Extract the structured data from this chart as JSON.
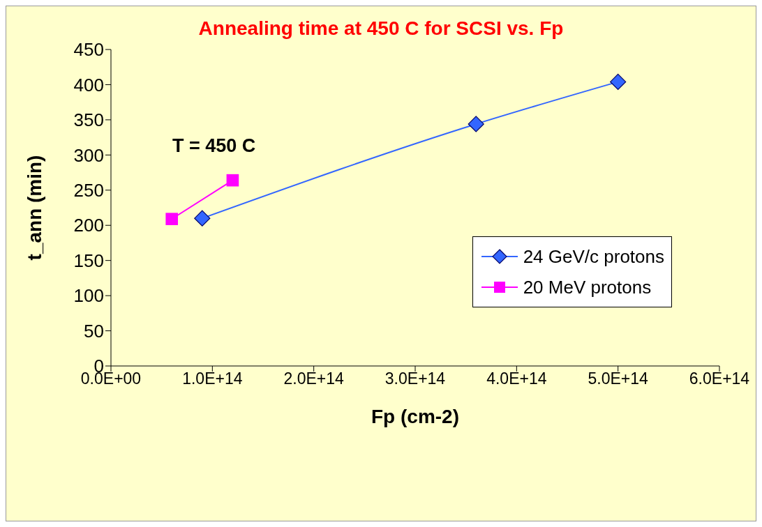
{
  "chart_data": {
    "type": "line",
    "title": "Annealing time at 450 C for SCSI vs. Fp",
    "xlabel": "Fp (cm-2)",
    "ylabel": "t_ann (min)",
    "annotations": [
      "T = 450 C"
    ],
    "xlim": [
      0,
      600000000000000
    ],
    "xticks": [
      {
        "value": 0,
        "label": "0.0E+00"
      },
      {
        "value": 100000000000000,
        "label": "1.0E+14"
      },
      {
        "value": 200000000000000,
        "label": "2.0E+14"
      },
      {
        "value": 300000000000000,
        "label": "3.0E+14"
      },
      {
        "value": 400000000000000,
        "label": "4.0E+14"
      },
      {
        "value": 500000000000000,
        "label": "5.0E+14"
      },
      {
        "value": 600000000000000,
        "label": "6.0E+14"
      }
    ],
    "ylim": [
      0,
      450
    ],
    "yticks": [
      0,
      50,
      100,
      150,
      200,
      250,
      300,
      350,
      400,
      450
    ],
    "grid": false,
    "legend": "right",
    "line_style": "solid",
    "series": [
      {
        "name": "24 GeV/c protons",
        "color": "#3366ff",
        "marker": "diamond",
        "x": [
          90000000000000,
          360000000000000,
          500000000000000
        ],
        "values": [
          210,
          344,
          404
        ]
      },
      {
        "name": "20 MeV protons",
        "color": "#ff00ff",
        "marker": "square",
        "x": [
          60000000000000,
          120000000000000
        ],
        "values": [
          209,
          264
        ]
      }
    ]
  }
}
